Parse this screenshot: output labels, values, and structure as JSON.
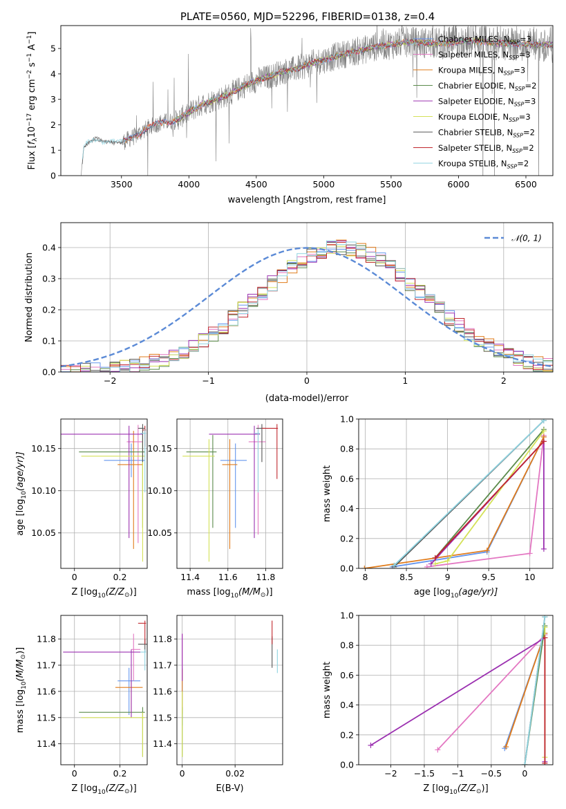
{
  "figure_title": "PLATE=0560, MJD=52296, FIBERID=0138, z=0.4",
  "models": [
    {
      "name": "Chabrier MILES, N_SSP=3",
      "label": "Chabrier MILES, N",
      "sub": "SSP",
      "val": "=3",
      "color": "#6495ed"
    },
    {
      "name": "Salpeter MILES, N_SSP=3",
      "label": "Salpeter MILES, N",
      "sub": "SSP",
      "val": "=3",
      "color": "#e377c2"
    },
    {
      "name": "Kroupa MILES, N_SSP=3",
      "label": "Kroupa MILES, N",
      "sub": "SSP",
      "val": "=3",
      "color": "#e07b1a"
    },
    {
      "name": "Chabrier ELODIE, N_SSP=2",
      "label": "Chabrier ELODIE, N",
      "sub": "SSP",
      "val": "=2",
      "color": "#5a8a4a"
    },
    {
      "name": "Salpeter ELODIE, N_SSP=3",
      "label": "Salpeter ELODIE, N",
      "sub": "SSP",
      "val": "=3",
      "color": "#9b30b0"
    },
    {
      "name": "Kroupa ELODIE, N_SSP=3",
      "label": "Kroupa ELODIE, N",
      "sub": "SSP",
      "val": "=3",
      "color": "#d4e157"
    },
    {
      "name": "Chabrier STELIB, N_SSP=2",
      "label": "Chabrier STELIB, N",
      "sub": "SSP",
      "val": "=2",
      "color": "#555555"
    },
    {
      "name": "Salpeter STELIB, N_SSP=2",
      "label": "Salpeter STELIB, N",
      "sub": "SSP",
      "val": "=2",
      "color": "#c0262d"
    },
    {
      "name": "Kroupa STELIB, N_SSP=2",
      "label": "Kroupa STELIB, N",
      "sub": "SSP",
      "val": "=2",
      "color": "#8fd3e0"
    }
  ],
  "chart_data": [
    {
      "id": "spectrum",
      "type": "line",
      "xlabel": "wavelength [Angstrom, rest frame]",
      "ylabel_parts": [
        "Flux [",
        "f",
        "λ",
        "10",
        "−17",
        " erg cm",
        "−2",
        " s",
        "−1",
        " A",
        "−1",
        "]"
      ],
      "xlim": [
        3050,
        6700
      ],
      "ylim": [
        0,
        5.9
      ],
      "xticks": [
        3500,
        4000,
        4500,
        5000,
        5500,
        6000,
        6500
      ],
      "yticks": [
        0,
        1,
        2,
        3,
        4,
        5
      ],
      "data_color": "#7f7f7f",
      "continuum": {
        "x": [
          3200,
          3220,
          3250,
          3300,
          3400,
          3500,
          3600,
          3700,
          3800,
          3900,
          4000,
          4100,
          4200,
          4300,
          4400,
          4500,
          4600,
          4700,
          4800,
          4900,
          5000,
          5100,
          5200,
          5300,
          5400,
          5500,
          5600,
          5700,
          5800,
          5900,
          6000,
          6100,
          6200,
          6300,
          6400,
          6500
        ],
        "y": [
          0,
          1.1,
          1.3,
          1.4,
          1.35,
          1.3,
          1.55,
          1.9,
          2.1,
          2.15,
          2.5,
          2.8,
          3.0,
          3.2,
          3.5,
          3.75,
          3.9,
          4.1,
          4.2,
          4.4,
          4.55,
          4.7,
          4.85,
          4.95,
          5.1,
          5.15,
          5.25,
          5.25,
          5.2,
          5.2,
          5.25,
          5.3,
          5.25,
          5.2,
          5.2,
          5.15
        ]
      }
    },
    {
      "id": "residuals",
      "type": "histogram",
      "xlabel": "(data-model)/error",
      "ylabel": "Normed distribution",
      "xlim": [
        -2.5,
        2.5
      ],
      "ylim": [
        0,
        0.48
      ],
      "xticks": [
        -2,
        -1,
        0,
        1,
        2
      ],
      "yticks": [
        0.0,
        0.1,
        0.2,
        0.3,
        0.4
      ],
      "legend": "𝒩(0, 1)",
      "legend_position": "top-right",
      "normal_color": "#5b8ad6"
    },
    {
      "id": "age_vs_Z",
      "type": "errorbar",
      "xlabel": "Z [log",
      "xlabel_sub": "10",
      "xlabel_rest": "(Z/Z",
      "ylabel": "age  [log",
      "ylabel_sub": "10",
      "ylabel_rest": "(age/yr)]",
      "xlim": [
        -0.06,
        0.32
      ],
      "ylim": [
        10.008,
        10.185
      ],
      "xticks": [
        0.0,
        0.2
      ],
      "yticks": [
        10.05,
        10.1,
        10.15
      ],
      "points": [
        {
          "x": 0.25,
          "y": 10.136,
          "xe": [
            0.12,
            0.06
          ],
          "ye": [
            0.02,
            0.02
          ],
          "m": 0
        },
        {
          "x": 0.28,
          "y": 10.158,
          "xe": [
            0.05,
            0.02
          ],
          "ye": [
            0.12,
            0.02
          ],
          "m": 1
        },
        {
          "x": 0.26,
          "y": 10.131,
          "xe": [
            0.07,
            0.04
          ],
          "ye": [
            0.1,
            0.04
          ],
          "m": 2
        },
        {
          "x": 0.3,
          "y": 10.146,
          "xe": [
            0.28,
            0.01
          ],
          "ye": [
            0.09,
            0.02
          ],
          "m": 3
        },
        {
          "x": 0.24,
          "y": 10.167,
          "xe": [
            0.3,
            0.06
          ],
          "ye": [
            0.123,
            0.01
          ],
          "m": 4
        },
        {
          "x": 0.3,
          "y": 10.141,
          "xe": [
            0.27,
            0.01
          ],
          "ye": [
            0.125,
            0.02
          ],
          "m": 5
        },
        {
          "x": 0.3,
          "y": 10.174,
          "xe": [
            0.02,
            0.01
          ],
          "ye": [
            0.04,
            0.005
          ],
          "m": 6
        },
        {
          "x": 0.31,
          "y": 10.172,
          "xe": [
            0.01,
            0.005
          ],
          "ye": [
            0.02,
            0.005
          ],
          "m": 7
        },
        {
          "x": 0.31,
          "y": 10.168,
          "xe": [
            0.02,
            0.005
          ],
          "ye": [
            0.07,
            0.005
          ],
          "m": 8
        }
      ]
    },
    {
      "id": "age_vs_mass",
      "type": "errorbar",
      "xlabel": "mass [log",
      "xlabel_sub": "10",
      "xlabel_rest": "(M/M",
      "xlim": [
        11.33,
        11.89
      ],
      "ylim": [
        10.008,
        10.185
      ],
      "xticks": [
        11.4,
        11.6,
        11.8
      ],
      "yticks": [
        10.05,
        10.1,
        10.15
      ],
      "points": [
        {
          "x": 11.64,
          "y": 10.136,
          "xe": [
            0.08,
            0.06
          ],
          "ye": [
            0.08,
            0.02
          ],
          "m": 0
        },
        {
          "x": 11.76,
          "y": 10.158,
          "xe": [
            0.05,
            0.04
          ],
          "ye": [
            0.11,
            0.02
          ],
          "m": 1
        },
        {
          "x": 11.61,
          "y": 10.131,
          "xe": [
            0.04,
            0.04
          ],
          "ye": [
            0.1,
            0.03
          ],
          "m": 2
        },
        {
          "x": 11.52,
          "y": 10.146,
          "xe": [
            0.14,
            0.02
          ],
          "ye": [
            0.09,
            0.02
          ],
          "m": 3
        },
        {
          "x": 11.74,
          "y": 10.167,
          "xe": [
            0.24,
            0.03
          ],
          "ye": [
            0.123,
            0.01
          ],
          "m": 4
        },
        {
          "x": 11.5,
          "y": 10.141,
          "xe": [
            0.14,
            0.03
          ],
          "ye": [
            0.125,
            0.02
          ],
          "m": 5
        },
        {
          "x": 11.78,
          "y": 10.174,
          "xe": [
            0.03,
            0.02
          ],
          "ye": [
            0.04,
            0.005
          ],
          "m": 6
        },
        {
          "x": 11.86,
          "y": 10.174,
          "xe": [
            0.08,
            0.005
          ],
          "ye": [
            0.06,
            0.005
          ],
          "m": 7
        },
        {
          "x": 11.76,
          "y": 10.168,
          "xe": [
            0.02,
            0.01
          ],
          "ye": [
            0.07,
            0.005
          ],
          "m": 8
        }
      ]
    },
    {
      "id": "weight_vs_age",
      "type": "line",
      "xlabel": "age  [log",
      "xlabel_sub": "10",
      "xlabel_rest": "(age/yr)]",
      "ylabel": "mass weight",
      "xlim": [
        7.92,
        10.28
      ],
      "ylim": [
        0,
        1.0
      ],
      "xticks": [
        8.0,
        8.5,
        9.0,
        9.5,
        10.0
      ],
      "yticks": [
        0.0,
        0.2,
        0.4,
        0.6,
        0.8,
        1.0
      ],
      "series": [
        {
          "m": 0,
          "x": [
            8.33,
            9.48,
            10.17
          ],
          "y": [
            0.01,
            0.11,
            0.88
          ]
        },
        {
          "m": 1,
          "x": [
            8.75,
            10.0,
            10.17
          ],
          "y": [
            0.01,
            0.1,
            0.89
          ]
        },
        {
          "m": 2,
          "x": [
            7.99,
            9.48,
            10.17
          ],
          "y": [
            0.0,
            0.12,
            0.88
          ]
        },
        {
          "m": 3,
          "x": [
            8.85,
            10.17
          ],
          "y": [
            0.07,
            0.93
          ]
        },
        {
          "m": 4,
          "x": [
            8.8,
            10.17,
            10.17
          ],
          "y": [
            0.03,
            0.85,
            0.13
          ]
        },
        {
          "m": 5,
          "x": [
            8.85,
            9.0,
            10.17
          ],
          "y": [
            0.03,
            0.05,
            0.92
          ]
        },
        {
          "m": 6,
          "x": [
            8.35,
            10.17
          ],
          "y": [
            0.01,
            0.99
          ]
        },
        {
          "m": 7,
          "x": [
            8.85,
            10.17
          ],
          "y": [
            0.07,
            0.85
          ]
        },
        {
          "m": 8,
          "x": [
            8.35,
            10.17
          ],
          "y": [
            0.02,
            0.99
          ]
        }
      ]
    },
    {
      "id": "mass_vs_Z",
      "type": "errorbar",
      "xlabel": "Z [log",
      "xlabel_sub": "10",
      "xlabel_rest": "(Z/Z",
      "ylabel": "mass [log",
      "ylabel_sub": "10",
      "ylabel_rest": "(M/M",
      "xlim": [
        -0.06,
        0.32
      ],
      "ylim": [
        11.32,
        11.89
      ],
      "xticks": [
        0.0,
        0.2
      ],
      "yticks": [
        11.4,
        11.5,
        11.6,
        11.7,
        11.8
      ],
      "points": [
        {
          "x": 0.24,
          "y": 11.64,
          "xe": [
            0.05,
            0.05
          ],
          "ye": [
            0.13,
            0.05
          ],
          "m": 0
        },
        {
          "x": 0.26,
          "y": 11.76,
          "xe": [
            0.01,
            0.03
          ],
          "ye": [
            0.12,
            0.06
          ],
          "m": 1
        },
        {
          "x": 0.25,
          "y": 11.615,
          "xe": [
            0.07,
            0.05
          ],
          "ye": [
            0.1,
            0.07
          ],
          "m": 2
        },
        {
          "x": 0.3,
          "y": 11.52,
          "xe": [
            0.28,
            0.01
          ],
          "ye": [
            0.17,
            0.02
          ],
          "m": 3
        },
        {
          "x": 0.25,
          "y": 11.75,
          "xe": [
            0.3,
            0.04
          ],
          "ye": [
            0.25,
            0.01
          ],
          "m": 4
        },
        {
          "x": 0.3,
          "y": 11.5,
          "xe": [
            0.27,
            0.01
          ],
          "ye": [
            0.15,
            0.02
          ],
          "m": 5
        },
        {
          "x": 0.31,
          "y": 11.78,
          "xe": [
            0.03,
            0.01
          ],
          "ye": [
            0.03,
            0.02
          ],
          "m": 6
        },
        {
          "x": 0.31,
          "y": 11.86,
          "xe": [
            0.03,
            0.005
          ],
          "ye": [
            0.08,
            0.01
          ],
          "m": 7
        },
        {
          "x": 0.31,
          "y": 11.75,
          "xe": [
            0.02,
            0.005
          ],
          "ye": [
            0.07,
            0.01
          ],
          "m": 8
        }
      ]
    },
    {
      "id": "mass_vs_ebv",
      "type": "errorbar",
      "xlabel": "E(B-V)",
      "xlim": [
        -0.002,
        0.038
      ],
      "ylim": [
        11.32,
        11.89
      ],
      "xticks": [
        0.0,
        0.02
      ],
      "yticks": [
        11.4,
        11.5,
        11.6,
        11.7,
        11.8
      ],
      "points": [
        {
          "x": 0.0,
          "y": 11.64,
          "xe": [
            0,
            0
          ],
          "ye": [
            0.17,
            0.05
          ],
          "m": 0
        },
        {
          "x": 0.0,
          "y": 11.76,
          "xe": [
            0,
            0
          ],
          "ye": [
            0.12,
            0.06
          ],
          "m": 1
        },
        {
          "x": 0.0,
          "y": 11.615,
          "xe": [
            0,
            0
          ],
          "ye": [
            0.1,
            0.07
          ],
          "m": 2
        },
        {
          "x": 0.0,
          "y": 11.52,
          "xe": [
            0,
            0
          ],
          "ye": [
            0.17,
            0.02
          ],
          "m": 3
        },
        {
          "x": 0.0,
          "y": 11.75,
          "xe": [
            0,
            0
          ],
          "ye": [
            0.11,
            0.07
          ],
          "m": 4
        },
        {
          "x": 0.0,
          "y": 11.5,
          "xe": [
            0,
            0
          ],
          "ye": [
            0.15,
            0.1
          ],
          "m": 5
        },
        {
          "x": 0.034,
          "y": 11.78,
          "xe": [
            0,
            0
          ],
          "ye": [
            0.09,
            0.03
          ],
          "m": 6
        },
        {
          "x": 0.034,
          "y": 11.86,
          "xe": [
            0,
            0
          ],
          "ye": [
            0.08,
            0.01
          ],
          "m": 7
        },
        {
          "x": 0.036,
          "y": 11.72,
          "xe": [
            0,
            0
          ],
          "ye": [
            0.05,
            0.04
          ],
          "m": 8
        }
      ]
    },
    {
      "id": "weight_vs_Z",
      "type": "line",
      "xlabel": "Z [log",
      "xlabel_sub": "10",
      "xlabel_rest": "(Z/Z",
      "ylabel": "mass weight",
      "xlim": [
        -2.48,
        0.42
      ],
      "ylim": [
        0,
        1.0
      ],
      "xticks": [
        -2.0,
        -1.5,
        -1.0,
        -0.5,
        0.0
      ],
      "yticks": [
        0.0,
        0.2,
        0.4,
        0.6,
        0.8,
        1.0
      ],
      "series": [
        {
          "m": 0,
          "x": [
            -0.3,
            0.3
          ],
          "y": [
            0.11,
            0.88
          ]
        },
        {
          "m": 1,
          "x": [
            -1.3,
            0.3
          ],
          "y": [
            0.1,
            0.87
          ]
        },
        {
          "m": 2,
          "x": [
            -0.28,
            0.3
          ],
          "y": [
            0.12,
            0.88
          ]
        },
        {
          "m": 3,
          "x": [
            0.0,
            0.3
          ],
          "y": [
            0.0,
            0.93
          ]
        },
        {
          "m": 4,
          "x": [
            -2.3,
            0.3,
            0.3
          ],
          "y": [
            0.13,
            0.85,
            0.02
          ]
        },
        {
          "m": 5,
          "x": [
            0.3,
            0.3
          ],
          "y": [
            0.05,
            0.92
          ]
        },
        {
          "m": 6,
          "x": [
            0.0,
            0.3
          ],
          "y": [
            0.0,
            0.99
          ]
        },
        {
          "m": 7,
          "x": [
            0.3,
            0.3
          ],
          "y": [
            0.01,
            0.85
          ]
        },
        {
          "m": 8,
          "x": [
            0.0,
            0.3
          ],
          "y": [
            0.0,
            0.99
          ]
        }
      ]
    }
  ]
}
